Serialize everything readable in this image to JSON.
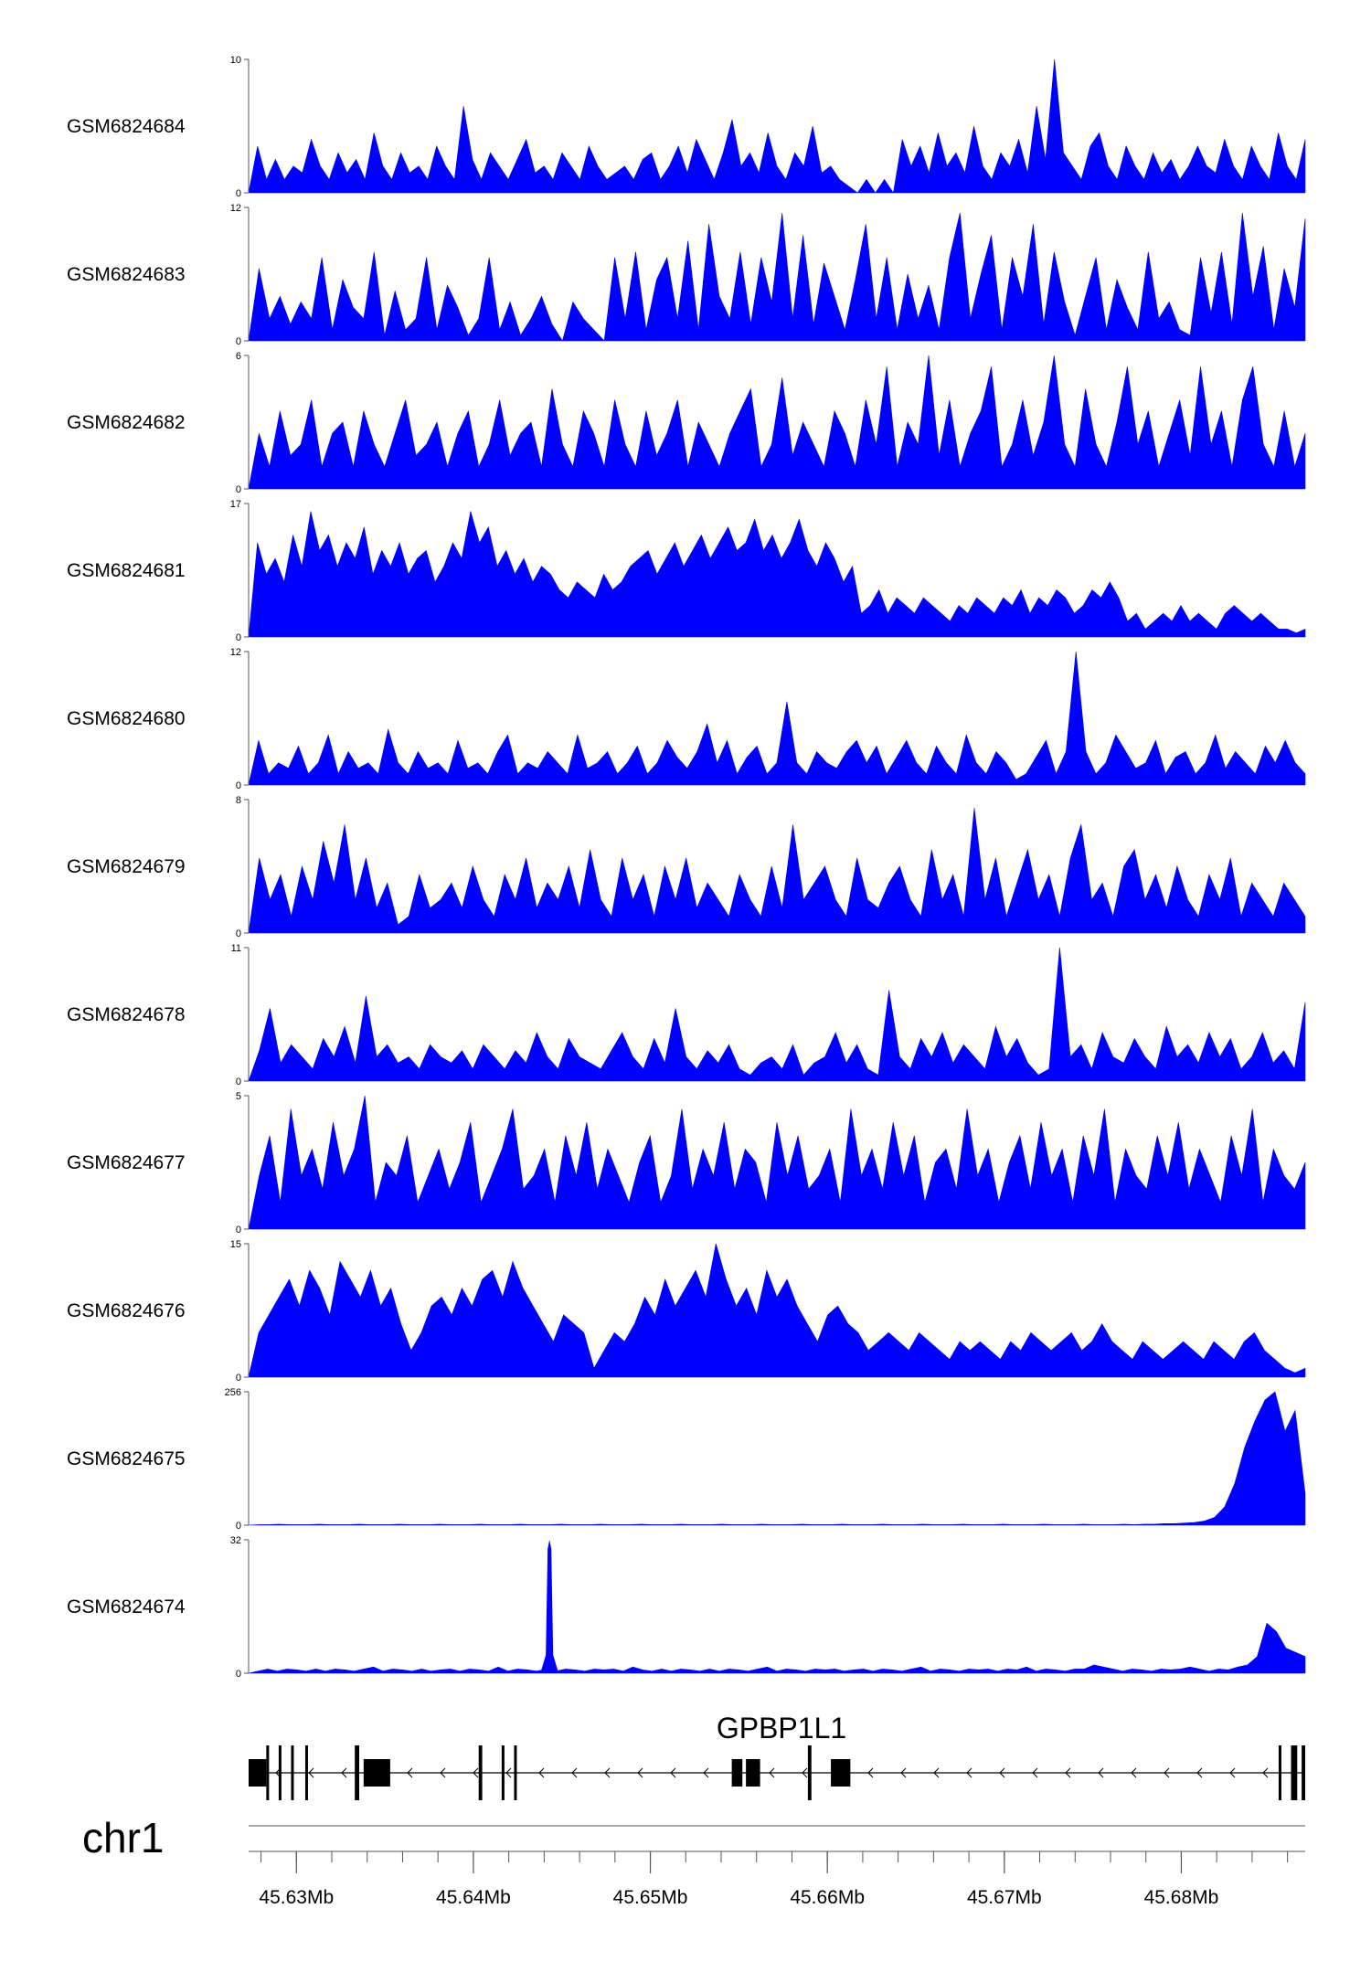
{
  "chart_data": {
    "type": "area",
    "chromosome": "chr1",
    "xlim": [
      45627300,
      45687000
    ],
    "gene_label": "GPBP1L1",
    "fill_color": "#0000ff",
    "x_ticks": [
      {
        "pos": 45630000,
        "label": "45.63Mb"
      },
      {
        "pos": 45640000,
        "label": "45.64Mb"
      },
      {
        "pos": 45650000,
        "label": "45.65Mb"
      },
      {
        "pos": 45660000,
        "label": "45.66Mb"
      },
      {
        "pos": 45670000,
        "label": "45.67Mb"
      },
      {
        "pos": 45680000,
        "label": "45.68Mb"
      }
    ],
    "series": [
      {
        "name": "GSM6824684",
        "ymax": 10,
        "ymin_label": "0",
        "values": [
          0,
          3.5,
          1,
          2.5,
          1,
          2,
          1.5,
          4,
          2,
          1,
          3,
          1.5,
          2.5,
          1,
          4.5,
          2,
          1,
          3,
          1.5,
          2,
          1,
          3.5,
          2,
          1,
          6.5,
          2.5,
          1,
          3,
          2,
          1,
          2.5,
          4,
          1.5,
          2,
          1,
          3,
          2,
          1,
          3.5,
          2,
          1,
          1.5,
          2,
          1,
          2.5,
          3,
          1,
          2,
          3.5,
          1.5,
          4,
          2.5,
          1,
          3,
          5.5,
          2,
          3,
          1.5,
          4.5,
          2,
          1,
          3,
          2,
          5,
          1.5,
          2,
          1,
          0.5,
          0,
          1,
          0,
          1,
          0,
          4,
          2,
          3.5,
          1.5,
          4.5,
          2,
          3,
          1.5,
          5,
          2,
          1,
          3,
          2,
          4,
          1.5,
          6.5,
          2.5,
          10,
          3,
          2,
          1,
          3.5,
          4.5,
          2,
          1,
          3.5,
          2,
          1,
          3,
          1.5,
          2.5,
          1,
          2,
          3.5,
          2,
          1.5,
          4,
          2,
          1,
          3.5,
          2,
          1,
          4.5,
          2,
          1,
          4
        ]
      },
      {
        "name": "GSM6824683",
        "ymax": 12,
        "ymin_label": "0",
        "values": [
          0,
          6.5,
          2,
          4,
          1.5,
          3.5,
          2,
          7.5,
          1,
          5.5,
          3,
          2,
          8,
          0.5,
          4.5,
          1,
          2,
          7.5,
          1,
          5,
          3,
          0.5,
          2,
          7.5,
          1,
          3.5,
          0.5,
          2,
          4,
          1.5,
          0,
          3.5,
          2,
          1,
          0,
          7.5,
          2,
          8,
          1,
          5.5,
          7.5,
          2,
          9,
          1,
          10.5,
          4,
          2,
          8,
          1.5,
          7.5,
          3.5,
          11.5,
          2,
          9.5,
          1.5,
          7,
          4,
          1,
          5.5,
          10.5,
          2,
          7.5,
          1,
          6,
          2,
          5,
          1,
          7.5,
          11.5,
          2,
          6,
          9.5,
          1,
          7.5,
          4,
          10.5,
          1.5,
          8,
          3.5,
          0.5,
          4,
          7.5,
          1,
          5.5,
          3,
          1,
          8,
          2,
          3.5,
          1,
          0.5,
          7.5,
          2.5,
          8,
          1.5,
          11.5,
          4,
          8.5,
          1,
          6.5,
          3,
          11
        ]
      },
      {
        "name": "GSM6824682",
        "ymax": 6,
        "ymin_label": "0",
        "values": [
          0,
          2.5,
          1,
          3.5,
          1.5,
          2,
          4,
          1,
          2.5,
          3,
          1,
          3.5,
          2,
          1,
          2.5,
          4,
          1.5,
          2,
          3,
          1,
          2.5,
          3.5,
          1,
          2,
          4,
          1.5,
          2.5,
          3,
          1,
          4.5,
          2,
          1,
          3.5,
          2.5,
          1,
          4,
          2,
          1,
          3.5,
          1.5,
          2.5,
          4,
          1,
          3,
          2,
          1,
          2.5,
          3.5,
          4.5,
          1,
          2,
          5,
          1.5,
          3,
          2,
          1,
          3.5,
          2.5,
          1,
          4,
          2,
          5.5,
          1,
          3,
          2,
          6,
          1.5,
          4,
          1,
          2.5,
          3.5,
          5.5,
          1,
          2,
          4,
          1.5,
          3,
          6,
          2,
          1,
          4.5,
          2,
          1,
          3,
          5.5,
          2,
          3.5,
          1,
          2.5,
          4,
          1.5,
          5.5,
          2,
          3.5,
          1,
          4,
          5.5,
          2,
          1,
          3.5,
          1,
          2.5
        ]
      },
      {
        "name": "GSM6824681",
        "ymax": 17,
        "ymin_label": "0",
        "values": [
          0,
          12,
          8,
          10,
          7,
          13,
          9,
          16,
          11,
          13,
          9,
          12,
          10,
          14,
          8,
          11,
          9,
          12,
          8,
          10,
          11,
          7,
          9,
          12,
          10,
          16,
          12,
          14,
          9,
          11,
          8,
          10,
          7,
          9,
          8,
          6,
          5,
          7,
          6,
          5,
          8,
          6,
          7,
          9,
          10,
          11,
          8,
          10,
          12,
          9,
          11,
          13,
          10,
          12,
          14,
          11,
          12,
          15,
          11,
          13,
          10,
          12,
          15,
          11,
          9,
          12,
          10,
          7,
          9,
          3,
          4,
          6,
          3,
          5,
          4,
          3,
          5,
          4,
          3,
          2,
          4,
          3,
          5,
          4,
          3,
          5,
          4,
          6,
          3,
          5,
          4,
          6,
          5,
          3,
          4,
          6,
          5,
          7,
          5,
          2,
          3,
          1,
          2,
          3,
          2,
          4,
          2,
          3,
          2,
          1,
          3,
          4,
          3,
          2,
          3,
          2,
          1,
          1,
          0.5,
          1
        ]
      },
      {
        "name": "GSM6824680",
        "ymax": 12,
        "ymin_label": "0",
        "values": [
          0,
          4,
          1,
          2,
          1.5,
          3.5,
          1,
          2,
          4.5,
          1,
          3,
          1.5,
          2,
          1,
          5,
          2,
          1,
          3,
          1.5,
          2,
          1,
          4,
          1.5,
          2,
          1,
          3,
          4.5,
          1,
          2,
          1.5,
          3,
          2,
          1,
          4.5,
          1.5,
          2,
          3,
          1,
          2,
          3.5,
          1,
          2,
          4,
          2.5,
          1.5,
          3,
          5.5,
          2,
          4,
          1,
          2.5,
          3.5,
          1,
          2,
          7.5,
          2,
          1,
          3,
          2,
          1.5,
          3,
          4,
          2,
          3.5,
          1,
          2.5,
          4,
          2,
          1,
          3.5,
          2,
          1,
          4.5,
          2,
          1,
          3,
          2,
          0.5,
          1,
          2.5,
          4,
          1,
          3,
          12,
          3,
          1,
          2,
          4.5,
          3,
          1.5,
          2,
          4,
          1,
          2.5,
          3,
          1,
          2,
          4.5,
          1.5,
          3,
          2,
          1,
          3.5,
          2,
          4,
          2,
          1
        ]
      },
      {
        "name": "GSM6824679",
        "ymax": 8,
        "ymin_label": "0",
        "values": [
          0,
          4.5,
          2,
          3.5,
          1,
          4,
          2,
          5.5,
          3,
          6.5,
          2,
          4.5,
          1.5,
          3,
          0.5,
          1,
          3.5,
          1.5,
          2,
          3,
          1.5,
          4,
          2,
          1,
          3.5,
          2,
          4.5,
          1.5,
          3,
          2,
          4,
          1.5,
          5,
          2,
          1,
          4.5,
          2,
          3.5,
          1,
          4,
          2,
          4.5,
          1.5,
          3,
          2,
          1,
          3.5,
          2,
          1,
          4,
          1.5,
          6.5,
          2,
          3,
          4,
          2,
          1,
          4.5,
          2,
          1.5,
          3,
          4,
          2,
          1,
          5,
          2,
          3.5,
          1,
          7.5,
          2,
          4.5,
          1,
          3,
          5,
          2,
          3.5,
          1,
          4.5,
          6.5,
          2,
          3,
          1,
          4,
          5,
          2,
          3.5,
          1.5,
          4,
          2,
          1,
          3.5,
          2,
          4.5,
          1,
          3,
          2,
          1,
          3,
          2,
          1
        ]
      },
      {
        "name": "GSM6824678",
        "ymax": 11,
        "ymin_label": "0",
        "values": [
          0,
          2.5,
          6,
          1.5,
          3,
          2,
          1,
          3.5,
          2,
          4.5,
          1.5,
          7,
          2,
          3,
          1.5,
          2,
          1,
          3,
          2,
          1.5,
          2.5,
          1,
          3,
          2,
          1,
          2.5,
          1.5,
          4,
          2,
          1,
          3.5,
          2,
          1.5,
          1,
          2.5,
          4,
          2,
          1,
          3.5,
          1.5,
          6,
          2,
          1,
          2.5,
          1.5,
          3,
          1,
          0.5,
          1.5,
          2,
          1,
          3,
          0.5,
          1.5,
          2,
          4,
          1.5,
          3,
          1,
          0.5,
          7.5,
          2,
          1,
          3.5,
          2,
          4,
          1.5,
          3,
          2,
          1,
          4.5,
          2,
          3.5,
          1.5,
          0.5,
          1,
          11,
          2,
          3,
          1,
          4,
          2,
          1.5,
          3.5,
          2,
          1,
          4.5,
          2,
          3,
          1.5,
          4,
          2,
          3.5,
          1,
          2,
          4,
          1.5,
          2.5,
          1,
          6.5
        ]
      },
      {
        "name": "GSM6824677",
        "ymax": 5,
        "ymin_label": "0",
        "values": [
          0,
          2,
          3.5,
          1,
          4.5,
          2,
          3,
          1.5,
          4,
          2,
          3,
          5,
          1,
          2.5,
          2,
          3.5,
          1,
          2,
          3,
          1.5,
          2.5,
          4,
          1,
          2,
          3,
          4.5,
          1.5,
          2,
          3,
          1,
          3.5,
          2,
          4,
          1.5,
          3,
          2,
          1,
          2.5,
          3.5,
          1,
          2,
          4.5,
          1.5,
          3,
          2,
          4,
          1.5,
          3,
          2.5,
          1,
          4,
          2,
          3.5,
          1.5,
          2,
          3,
          1,
          4.5,
          2,
          3,
          1.5,
          4,
          2,
          3.5,
          1,
          2.5,
          3,
          1.5,
          4.5,
          2,
          3,
          1,
          2.5,
          3.5,
          1.5,
          4,
          2,
          3,
          1,
          3.5,
          2,
          4.5,
          1,
          3,
          2,
          1.5,
          3.5,
          2,
          4,
          1.5,
          3,
          2,
          1,
          3.5,
          2,
          4.5,
          1,
          3,
          2,
          1.5,
          2.5
        ]
      },
      {
        "name": "GSM6824676",
        "ymax": 15,
        "ymin_label": "0",
        "values": [
          0,
          5,
          7,
          9,
          11,
          8,
          12,
          10,
          7,
          13,
          11,
          9,
          12,
          8,
          10,
          6,
          3,
          5,
          8,
          9,
          7,
          10,
          8,
          11,
          12,
          9,
          13,
          10,
          8,
          6,
          4,
          7,
          6,
          5,
          1,
          3,
          5,
          4,
          6,
          9,
          7,
          11,
          8,
          10,
          12,
          9,
          15,
          11,
          8,
          10,
          7,
          12,
          9,
          11,
          8,
          6,
          4,
          7,
          8,
          6,
          5,
          3,
          4,
          5,
          4,
          3,
          5,
          4,
          3,
          2,
          4,
          3,
          4,
          3,
          2,
          4,
          3,
          5,
          4,
          3,
          4,
          5,
          3,
          4,
          6,
          4,
          3,
          2,
          4,
          3,
          2,
          3,
          4,
          3,
          2,
          4,
          3,
          2,
          4,
          5,
          3,
          2,
          1,
          0.5,
          1
        ]
      },
      {
        "name": "GSM6824675",
        "ymax": 256,
        "ymin_label": "0",
        "values": [
          0,
          1,
          1,
          2,
          1,
          1,
          1,
          2,
          1,
          1,
          1,
          2,
          1,
          1,
          1,
          2,
          1,
          1,
          1,
          2,
          1,
          1,
          1,
          2,
          1,
          1,
          1,
          2,
          1,
          1,
          1,
          2,
          1,
          1,
          1,
          2,
          1,
          1,
          1,
          2,
          1,
          1,
          1,
          2,
          1,
          1,
          1,
          2,
          1,
          1,
          1,
          2,
          1,
          1,
          1,
          2,
          1,
          1,
          1,
          2,
          1,
          1,
          1,
          2,
          1,
          1,
          1,
          2,
          1,
          1,
          1,
          2,
          1,
          1,
          1,
          2,
          1,
          1,
          1,
          2,
          1,
          1,
          1,
          2,
          1,
          1,
          1,
          2,
          1,
          2,
          2,
          3,
          3,
          4,
          5,
          8,
          15,
          35,
          80,
          150,
          200,
          240,
          256,
          180,
          220,
          60
        ]
      },
      {
        "name": "GSM6824674",
        "ymax": 32,
        "ymin_label": "0",
        "values": [
          0,
          0.5,
          1,
          0.5,
          1,
          0.8,
          0.5,
          1,
          0.5,
          1,
          0.8,
          0.5,
          1,
          1.5,
          0.5,
          1,
          0.8,
          0.5,
          1,
          0.5,
          0.8,
          1,
          0.5,
          1,
          0.8,
          0.5,
          1.5,
          0.5,
          1,
          0.8,
          0.5,
          1,
          0.5,
          1,
          0.8,
          0.5,
          1,
          0.8,
          1,
          0.5,
          1.5,
          0.8,
          0.5,
          1,
          0.5,
          1,
          0.8,
          0.5,
          1,
          0.5,
          1,
          0.8,
          0.5,
          1,
          1.5,
          0.5,
          1,
          0.8,
          0.5,
          1,
          0.8,
          1,
          0.5,
          0.8,
          1,
          0.5,
          1,
          0.8,
          0.5,
          1,
          1.5,
          0.5,
          1,
          0.8,
          0.5,
          1,
          0.8,
          1,
          0.5,
          1,
          0.8,
          1.5,
          0.5,
          1,
          0.8,
          0.5,
          1,
          1,
          2,
          1.5,
          1,
          0.5,
          1,
          0.8,
          0.5,
          1,
          0.8,
          1,
          1.5,
          1,
          0.5,
          1,
          0.8,
          1.5,
          2,
          4,
          12,
          10,
          6,
          5,
          4
        ]
      }
    ],
    "peak_spike": {
      "series_index": 10,
      "x": 45644300,
      "y": 32
    },
    "gene_model": {
      "exons": [
        [
          45627300,
          45628300
        ],
        [
          45628300,
          45628450
        ],
        [
          45629000,
          45629150
        ],
        [
          45629700,
          45629850
        ],
        [
          45630500,
          45630600
        ],
        [
          45633300,
          45633550
        ],
        [
          45633800,
          45635300
        ],
        [
          45640300,
          45640500
        ],
        [
          45641600,
          45641700
        ],
        [
          45642300,
          45642450
        ],
        [
          45654600,
          45655200
        ],
        [
          45655400,
          45656200
        ],
        [
          45658900,
          45659100
        ],
        [
          45660200,
          45661300
        ],
        [
          45685500,
          45685650
        ],
        [
          45686200,
          45686550
        ],
        [
          45686800,
          45687000
        ]
      ],
      "strand": "-"
    }
  }
}
